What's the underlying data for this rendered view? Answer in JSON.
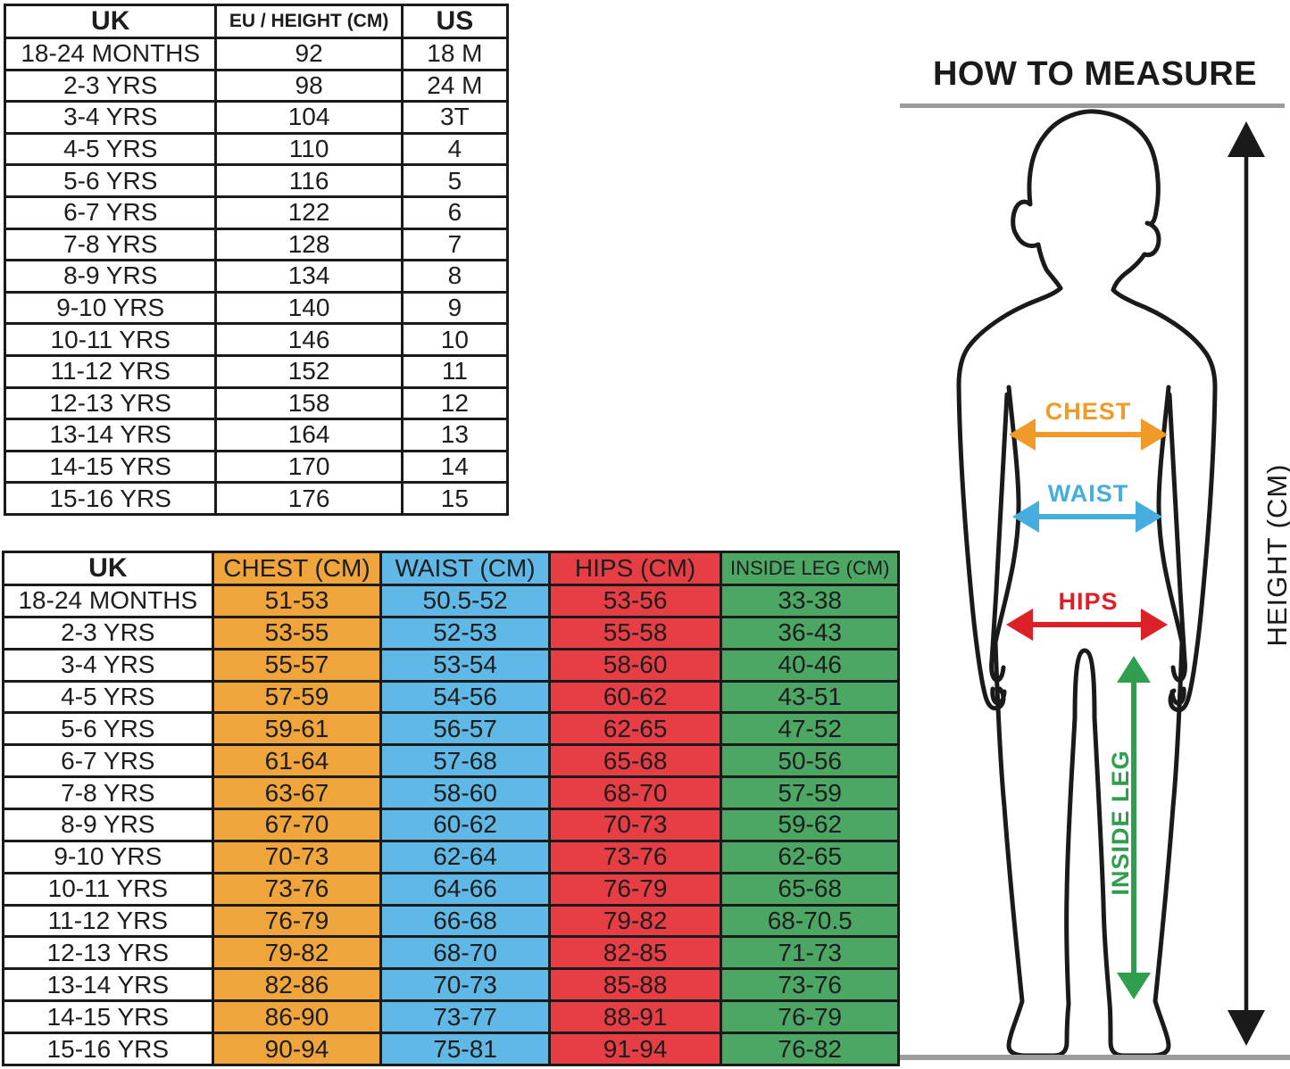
{
  "size_table": {
    "columns": [
      "UK",
      "EU / HEIGHT (CM)",
      "US"
    ],
    "rows": [
      [
        "18-24 MONTHS",
        "92",
        "18 M"
      ],
      [
        "2-3 YRS",
        "98",
        "24 M"
      ],
      [
        "3-4 YRS",
        "104",
        "3T"
      ],
      [
        "4-5 YRS",
        "110",
        "4"
      ],
      [
        "5-6 YRS",
        "116",
        "5"
      ],
      [
        "6-7 YRS",
        "122",
        "6"
      ],
      [
        "7-8 YRS",
        "128",
        "7"
      ],
      [
        "8-9 YRS",
        "134",
        "8"
      ],
      [
        "9-10 YRS",
        "140",
        "9"
      ],
      [
        "10-11 YRS",
        "146",
        "10"
      ],
      [
        "11-12 YRS",
        "152",
        "11"
      ],
      [
        "12-13 YRS",
        "158",
        "12"
      ],
      [
        "13-14 YRS",
        "164",
        "13"
      ],
      [
        "14-15 YRS",
        "170",
        "14"
      ],
      [
        "15-16 YRS",
        "176",
        "15"
      ]
    ]
  },
  "measurement_table": {
    "columns": [
      "UK",
      "CHEST (CM)",
      "WAIST (CM)",
      "HIPS (CM)",
      "INSIDE LEG (CM)"
    ],
    "column_colors": [
      "#FFFFFF",
      "#F0A43C",
      "#5FB8E5",
      "#E63E44",
      "#4CA765"
    ],
    "rows": [
      [
        "18-24 MONTHS",
        "51-53",
        "50.5-52",
        "53-56",
        "33-38"
      ],
      [
        "2-3 YRS",
        "53-55",
        "52-53",
        "55-58",
        "36-43"
      ],
      [
        "3-4 YRS",
        "55-57",
        "53-54",
        "58-60",
        "40-46"
      ],
      [
        "4-5 YRS",
        "57-59",
        "54-56",
        "60-62",
        "43-51"
      ],
      [
        "5-6 YRS",
        "59-61",
        "56-57",
        "62-65",
        "47-52"
      ],
      [
        "6-7 YRS",
        "61-64",
        "57-68",
        "65-68",
        "50-56"
      ],
      [
        "7-8 YRS",
        "63-67",
        "58-60",
        "68-70",
        "57-59"
      ],
      [
        "8-9 YRS",
        "67-70",
        "60-62",
        "70-73",
        "59-62"
      ],
      [
        "9-10 YRS",
        "70-73",
        "62-64",
        "73-76",
        "62-65"
      ],
      [
        "10-11 YRS",
        "73-76",
        "64-66",
        "76-79",
        "65-68"
      ],
      [
        "11-12 YRS",
        "76-79",
        "66-68",
        "79-82",
        "68-70.5"
      ],
      [
        "12-13 YRS",
        "79-82",
        "68-70",
        "82-85",
        "71-73"
      ],
      [
        "13-14 YRS",
        "82-86",
        "70-73",
        "85-88",
        "73-76"
      ],
      [
        "14-15 YRS",
        "86-90",
        "73-77",
        "88-91",
        "76-79"
      ],
      [
        "15-16 YRS",
        "90-94",
        "75-81",
        "91-94",
        "76-82"
      ]
    ]
  },
  "how_to_measure": {
    "title": "HOW TO MEASURE",
    "labels": {
      "chest": "CHEST",
      "waist": "WAIST",
      "hips": "HIPS",
      "inside_leg": "INSIDE LEG",
      "height": "HEIGHT (CM)"
    },
    "colors": {
      "outline": "#1A1A1A",
      "chest": "#F09B27",
      "waist": "#45AEDE",
      "hips": "#DD2027",
      "inside_leg": "#2F9E4E",
      "height_arrow": "#1A1A1A",
      "rule": "#9B9B9B"
    }
  }
}
